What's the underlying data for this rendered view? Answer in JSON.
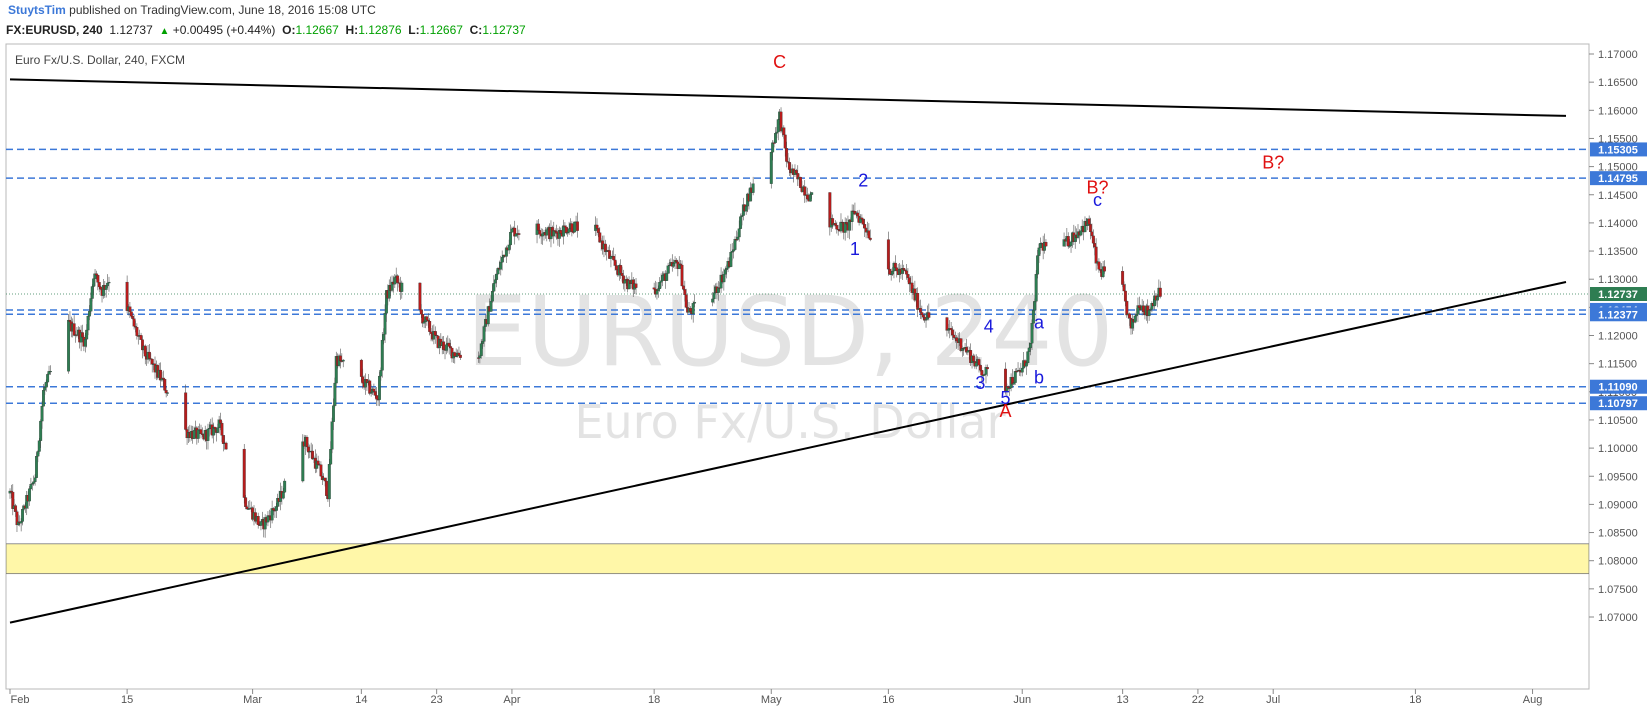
{
  "header": {
    "author": "StuytsTim",
    "published": "published on TradingView.com, June 18, 2016 15:08 UTC"
  },
  "quote": {
    "symbol": "FX:EURUSD, 240",
    "last": "1.12737",
    "change": "+0.00495 (+0.44%)",
    "o_label": "O:",
    "o": "1.12667",
    "h_label": "H:",
    "h": "1.12876",
    "l_label": "L:",
    "l": "1.12667",
    "c_label": "C:",
    "c": "1.12737"
  },
  "colors": {
    "up": "#2e7d52",
    "down": "#b71c1c",
    "level": "#3c78d8",
    "zone": "#fff7a8",
    "label_blue": "#1a1adc",
    "label_red": "#e01010"
  },
  "chart_data": {
    "type": "candlestick",
    "title": "Euro Fx/U.S. Dollar, 240, FXCM",
    "watermark": {
      "symbol": "EURUSD, 240",
      "name": "Euro Fx/U.S. Dollar"
    },
    "x_ticks": [
      "Feb",
      "15",
      "Mar",
      "14",
      "23",
      "Apr",
      "18",
      "May",
      "16",
      "Jun",
      "13",
      "22",
      "Jul",
      "18",
      "Aug"
    ],
    "y_ticks": [
      "1.17000",
      "1.16500",
      "1.16000",
      "1.15500",
      "1.15000",
      "1.14500",
      "1.14000",
      "1.13500",
      "1.13000",
      "1.12500",
      "1.12000",
      "1.11500",
      "1.11000",
      "1.10500",
      "1.10000",
      "1.09500",
      "1.09000",
      "1.08500",
      "1.08000",
      "1.07500",
      "1.07000"
    ],
    "ylim": [
      1.0675,
      1.1725
    ],
    "price_levels": [
      {
        "value": 1.15305,
        "label": "1.15305"
      },
      {
        "value": 1.14795,
        "label": "1.14795"
      },
      {
        "value": 1.12454,
        "label": "1.12454"
      },
      {
        "value": 1.12377,
        "label": "1.12377"
      },
      {
        "value": 1.1109,
        "label": "1.11090"
      },
      {
        "value": 1.10797,
        "label": "1.10797"
      }
    ],
    "last_price": {
      "value": 1.12737,
      "label": "1.12737"
    },
    "support_zone": [
      1.0777,
      1.083
    ],
    "trendlines": [
      {
        "from": [
          "Feb 1",
          1.1655
        ],
        "to": [
          "Aug 5",
          1.159
        ]
      },
      {
        "from": [
          "Feb 1",
          1.069
        ],
        "to": [
          "Aug 5",
          1.1295
        ]
      }
    ],
    "wave_labels": [
      {
        "text": "C",
        "date": "May 3",
        "price": 1.1675,
        "color": "red"
      },
      {
        "text": "B?",
        "date": "Jun 10",
        "price": 1.1452,
        "color": "red"
      },
      {
        "text": "B?",
        "date": "Jul 1",
        "price": 1.1497,
        "color": "red"
      },
      {
        "text": "A",
        "date": "May 30",
        "price": 1.1055,
        "color": "red"
      },
      {
        "text": "1",
        "date": "May 12",
        "price": 1.1343,
        "color": "blue"
      },
      {
        "text": "2",
        "date": "May 13",
        "price": 1.1465,
        "color": "blue"
      },
      {
        "text": "3",
        "date": "May 27",
        "price": 1.1105,
        "color": "blue"
      },
      {
        "text": "4",
        "date": "May 28",
        "price": 1.1205,
        "color": "blue"
      },
      {
        "text": "5",
        "date": "May 30",
        "price": 1.1078,
        "color": "blue"
      },
      {
        "text": "a",
        "date": "Jun 3",
        "price": 1.1212,
        "color": "blue"
      },
      {
        "text": "b",
        "date": "Jun 3",
        "price": 1.1115,
        "color": "blue"
      },
      {
        "text": "c",
        "date": "Jun 10",
        "price": 1.143,
        "color": "blue"
      }
    ],
    "series_close_path": [
      [
        "Feb 1",
        1.092
      ],
      [
        "Feb 2",
        1.086
      ],
      [
        "Feb 4",
        1.095
      ],
      [
        "Feb 5",
        1.11
      ],
      [
        "Feb 8",
        1.122
      ],
      [
        "Feb 10",
        1.119
      ],
      [
        "Feb 11",
        1.131
      ],
      [
        "Feb 12",
        1.128
      ],
      [
        "Feb 14",
        1.133
      ],
      [
        "Feb 15",
        1.125
      ],
      [
        "Feb 17",
        1.117
      ],
      [
        "Feb 19",
        1.1125
      ],
      [
        "Feb 22",
        1.103
      ],
      [
        "Feb 24",
        1.102
      ],
      [
        "Feb 26",
        1.104
      ],
      [
        "Feb 29",
        1.091
      ],
      [
        "Mar 2",
        1.086
      ],
      [
        "Mar 4",
        1.09
      ],
      [
        "Mar 7",
        1.102
      ],
      [
        "Mar 9",
        1.096
      ],
      [
        "Mar 10",
        1.092
      ],
      [
        "Mar 11",
        1.116
      ],
      [
        "Mar 14",
        1.112
      ],
      [
        "Mar 16",
        1.109
      ],
      [
        "Mar 17",
        1.127
      ],
      [
        "Mar 18",
        1.13
      ],
      [
        "Mar 21",
        1.124
      ],
      [
        "Mar 23",
        1.119
      ],
      [
        "Mar 25",
        1.117
      ],
      [
        "Mar 28",
        1.116
      ],
      [
        "Mar 30",
        1.13
      ],
      [
        "Apr 1",
        1.1385
      ],
      [
        "Apr 4",
        1.139
      ],
      [
        "Apr 6",
        1.138
      ],
      [
        "Apr 8",
        1.1395
      ],
      [
        "Apr 11",
        1.1385
      ],
      [
        "Apr 13",
        1.133
      ],
      [
        "Apr 15",
        1.129
      ],
      [
        "Apr 18",
        1.128
      ],
      [
        "Apr 20",
        1.132
      ],
      [
        "Apr 21",
        1.133
      ],
      [
        "Apr 22",
        1.124
      ],
      [
        "Apr 25",
        1.127
      ],
      [
        "Apr 27",
        1.133
      ],
      [
        "Apr 29",
        1.144
      ],
      [
        "May 2",
        1.153
      ],
      [
        "May 3",
        1.159
      ],
      [
        "May 4",
        1.15
      ],
      [
        "May 6",
        1.146
      ],
      [
        "May 9",
        1.14
      ],
      [
        "May 11",
        1.139
      ],
      [
        "May 12",
        1.142
      ],
      [
        "May 13",
        1.14
      ],
      [
        "May 16",
        1.132
      ],
      [
        "May 18",
        1.131
      ],
      [
        "May 20",
        1.124
      ],
      [
        "May 23",
        1.121
      ],
      [
        "May 25",
        1.118
      ],
      [
        "May 27",
        1.114
      ],
      [
        "May 30",
        1.111
      ],
      [
        "Jun 1",
        1.114
      ],
      [
        "Jun 2",
        1.118
      ],
      [
        "Jun 3",
        1.136
      ],
      [
        "Jun 6",
        1.136
      ],
      [
        "Jun 8",
        1.139
      ],
      [
        "Jun 9",
        1.14
      ],
      [
        "Jun 10",
        1.132
      ],
      [
        "Jun 13",
        1.128
      ],
      [
        "Jun 14",
        1.121
      ],
      [
        "Jun 15",
        1.126
      ],
      [
        "Jun 16",
        1.124
      ],
      [
        "Jun 17",
        1.1274
      ]
    ]
  }
}
